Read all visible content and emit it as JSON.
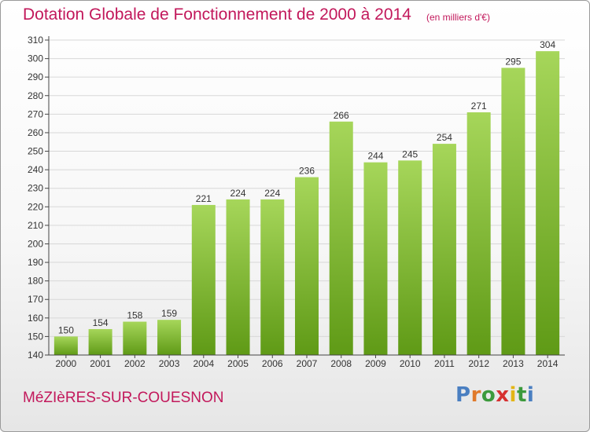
{
  "header": {
    "title": "Dotation Globale de Fonctionnement de 2000 à 2014",
    "unit_note": "(en milliers d'€)"
  },
  "footer": {
    "town_name": "MéZIèRES-SUR-COUESNON",
    "logo_text": "Proxiti"
  },
  "colors": {
    "title": "#c2185b",
    "bar_top": "#a6d65a",
    "bar_bottom": "#5f9a16",
    "grid": "#d8d8d8",
    "axis": "#444444",
    "logo_letters": [
      "#4a7fc1",
      "#e07a2b",
      "#3c9a3c",
      "#d63030",
      "#e3b515",
      "#3c9a3c",
      "#4a7fc1"
    ]
  },
  "chart_data": {
    "type": "bar",
    "title": "Dotation Globale de Fonctionnement de 2000 à 2014",
    "subtitle": "(en milliers d'€)",
    "xlabel": "",
    "ylabel": "",
    "categories": [
      "2000",
      "2001",
      "2002",
      "2003",
      "2004",
      "2005",
      "2006",
      "2007",
      "2008",
      "2009",
      "2010",
      "2011",
      "2012",
      "2013",
      "2014"
    ],
    "values": [
      150,
      154,
      158,
      159,
      221,
      224,
      224,
      236,
      266,
      244,
      245,
      254,
      271,
      295,
      304
    ],
    "ylim": [
      140,
      310
    ],
    "ytick_step": 10,
    "grid": true,
    "legend": "none",
    "data_labels": true
  }
}
